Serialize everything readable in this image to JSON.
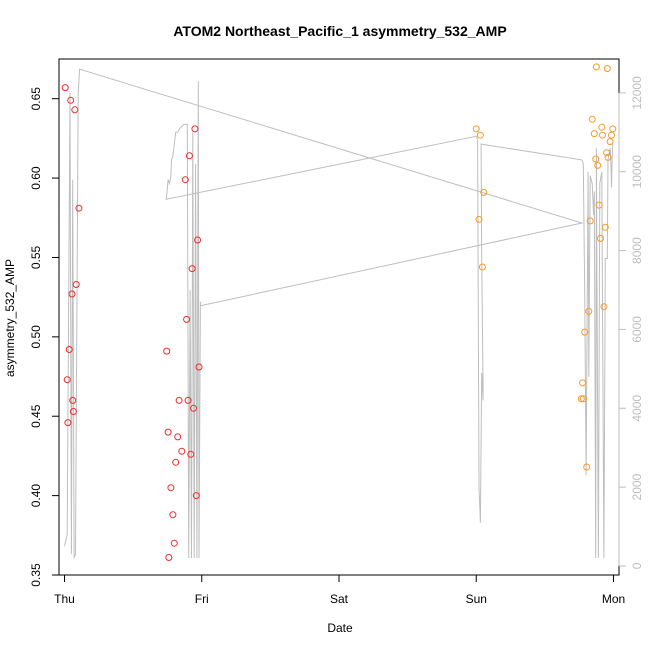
{
  "chart_data": {
    "type": "scatter",
    "title": "ATOM2 Northeast_Pacific_1 asymmetry_532_AMP",
    "xlabel": "Date",
    "ylabel": "asymmetry_532_AMP",
    "x_ticks": [
      "Thu",
      "Fri",
      "Sat",
      "Sun",
      "Mon"
    ],
    "x_tick_values": [
      0,
      1,
      2,
      3,
      4
    ],
    "xlim": [
      -0.04,
      4.04
    ],
    "y_ticks": [
      0.35,
      0.4,
      0.45,
      0.5,
      0.55,
      0.6,
      0.65
    ],
    "ylim": [
      0.35,
      0.675
    ],
    "y2_ticks": [
      0,
      2000,
      4000,
      6000,
      8000,
      10000,
      12000
    ],
    "y2lim": [
      -230,
      12860
    ],
    "grid": false,
    "series": [
      {
        "color": "#ee2c2c",
        "points": [
          [
            0.005,
            0.657
          ],
          [
            0.02,
            0.473
          ],
          [
            0.025,
            0.446
          ],
          [
            0.035,
            0.492
          ],
          [
            0.045,
            0.649
          ],
          [
            0.055,
            0.527
          ],
          [
            0.06,
            0.46
          ],
          [
            0.065,
            0.453
          ],
          [
            0.075,
            0.643
          ],
          [
            0.085,
            0.533
          ],
          [
            0.105,
            0.581
          ],
          [
            0.745,
            0.491
          ],
          [
            0.755,
            0.44
          ],
          [
            0.76,
            0.361
          ],
          [
            0.775,
            0.405
          ],
          [
            0.79,
            0.388
          ],
          [
            0.8,
            0.37
          ],
          [
            0.81,
            0.421
          ],
          [
            0.825,
            0.437
          ],
          [
            0.835,
            0.46
          ],
          [
            0.855,
            0.428
          ],
          [
            0.88,
            0.599
          ],
          [
            0.89,
            0.511
          ],
          [
            0.9,
            0.46
          ],
          [
            0.91,
            0.614
          ],
          [
            0.92,
            0.426
          ],
          [
            0.93,
            0.543
          ],
          [
            0.94,
            0.455
          ],
          [
            0.95,
            0.631
          ],
          [
            0.96,
            0.4
          ],
          [
            0.97,
            0.561
          ],
          [
            0.98,
            0.481
          ]
        ]
      },
      {
        "color": "#f59a2a",
        "points": [
          [
            3.0,
            0.631
          ],
          [
            3.02,
            0.574
          ],
          [
            3.03,
            0.627
          ],
          [
            3.045,
            0.544
          ],
          [
            3.055,
            0.591
          ],
          [
            3.765,
            0.461
          ],
          [
            3.775,
            0.471
          ],
          [
            3.78,
            0.461
          ],
          [
            3.79,
            0.503
          ],
          [
            3.805,
            0.418
          ],
          [
            3.82,
            0.516
          ],
          [
            3.83,
            0.573
          ],
          [
            3.845,
            0.637
          ],
          [
            3.86,
            0.628
          ],
          [
            3.87,
            0.612
          ],
          [
            3.875,
            0.67
          ],
          [
            3.885,
            0.608
          ],
          [
            3.895,
            0.583
          ],
          [
            3.905,
            0.562
          ],
          [
            3.915,
            0.632
          ],
          [
            3.92,
            0.627
          ],
          [
            3.93,
            0.519
          ],
          [
            3.94,
            0.569
          ],
          [
            3.95,
            0.616
          ],
          [
            3.955,
            0.669
          ],
          [
            3.96,
            0.613
          ],
          [
            3.975,
            0.623
          ],
          [
            3.985,
            0.627
          ],
          [
            3.995,
            0.631
          ]
        ]
      },
      {
        "color": "#bebebe",
        "axis": "right",
        "style": "line",
        "points": [
          [
            0.0,
            500
          ],
          [
            0.02,
            800
          ],
          [
            0.04,
            12000
          ],
          [
            0.05,
            300
          ],
          [
            0.06,
            9800
          ],
          [
            0.07,
            200
          ],
          [
            0.08,
            300
          ],
          [
            0.1,
            12000
          ],
          [
            0.11,
            12600
          ],
          [
            3.77,
            8700
          ],
          [
            0.99,
            6600
          ],
          [
            0.99,
            6700
          ],
          [
            0.98,
            200
          ],
          [
            0.975,
            12300
          ],
          [
            0.965,
            200
          ],
          [
            0.955,
            10200
          ],
          [
            0.945,
            200
          ],
          [
            0.935,
            11000
          ],
          [
            0.925,
            200
          ],
          [
            0.915,
            7000
          ],
          [
            0.905,
            200
          ],
          [
            0.895,
            11200
          ],
          [
            0.885,
            11200
          ],
          [
            0.87,
            11200
          ],
          [
            0.84,
            11100
          ],
          [
            0.825,
            11000
          ],
          [
            0.81,
            11000
          ],
          [
            0.8,
            10700
          ],
          [
            0.79,
            10400
          ],
          [
            0.78,
            10300
          ],
          [
            0.775,
            9900
          ],
          [
            0.765,
            9700
          ],
          [
            0.755,
            9800
          ],
          [
            0.745,
            9400
          ],
          [
            0.74,
            9300
          ],
          [
            3.0,
            10900
          ],
          [
            3.01,
            10800
          ],
          [
            3.02,
            2000
          ],
          [
            3.03,
            1100
          ],
          [
            3.04,
            4900
          ],
          [
            3.05,
            4200
          ],
          [
            3.05,
            4500
          ],
          [
            3.04,
            7800
          ],
          [
            3.035,
            10700
          ],
          [
            3.77,
            10300
          ],
          [
            3.78,
            10200
          ],
          [
            3.79,
            7000
          ],
          [
            3.8,
            2300
          ],
          [
            3.815,
            10000
          ],
          [
            3.82,
            4800
          ],
          [
            3.83,
            9900
          ],
          [
            3.845,
            9700
          ],
          [
            3.855,
            8900
          ],
          [
            3.86,
            9500
          ],
          [
            3.87,
            200
          ],
          [
            3.875,
            10600
          ],
          [
            3.88,
            7000
          ],
          [
            3.89,
            200
          ],
          [
            3.9,
            9700
          ],
          [
            3.915,
            10000
          ],
          [
            3.92,
            6600
          ],
          [
            3.93,
            200
          ],
          [
            3.94,
            7800
          ],
          [
            3.955,
            7800
          ],
          [
            3.96,
            10300
          ],
          [
            3.975,
            10600
          ],
          [
            3.98,
            10300
          ],
          [
            3.985,
            9600
          ],
          [
            3.99,
            10300
          ],
          [
            3.995,
            10700
          ]
        ]
      }
    ]
  }
}
